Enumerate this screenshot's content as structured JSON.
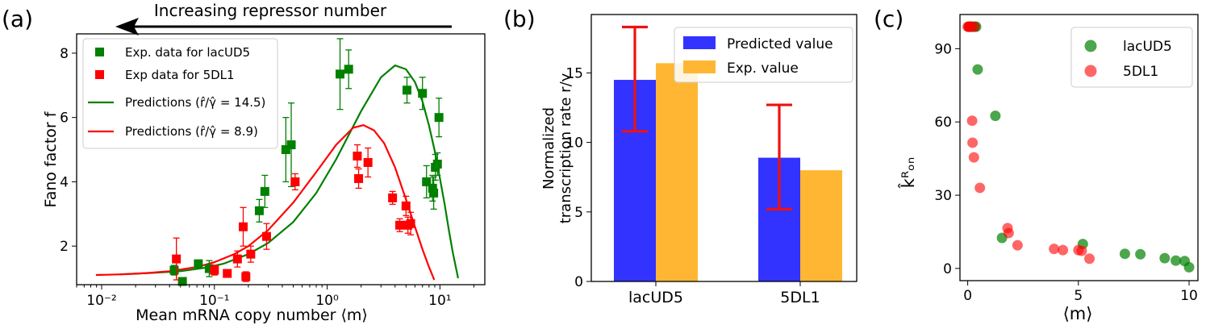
{
  "colors": {
    "lac": "#008000",
    "dl1": "#ff0000",
    "blue": "#3333ff",
    "orange": "#ffb733",
    "err": "#ee1111"
  },
  "chart_data": [
    {
      "type": "scatter",
      "panel_label": "(a)",
      "title": "",
      "annotation": "Increasing repressor number",
      "xlabel": "Mean mRNA copy number ⟨m⟩",
      "ylabel": "Fano factor f",
      "xscale": "log",
      "xlim": [
        0.006,
        25
      ],
      "ylim": [
        0.8,
        8.6
      ],
      "xticks": [
        0.01,
        0.1,
        1,
        10
      ],
      "xtick_labels": [
        "10⁻²",
        "10⁻¹",
        "10⁰",
        "10¹"
      ],
      "yticks": [
        2,
        4,
        6,
        8
      ],
      "ytick_labels": [
        "2",
        "4",
        "6",
        "8"
      ],
      "legend": [
        "Exp. data for lacUD5",
        "Exp data for 5DL1",
        "Predictions (r̂/γ̂ = 14.5)",
        "Predictions (r̂/γ̂ = 8.9)"
      ],
      "series": [
        {
          "name": "Exp. data for lacUD5",
          "kind": "points",
          "x": [
            0.044,
            0.052,
            0.072,
            0.09,
            0.25,
            0.28,
            0.43,
            0.48,
            1.3,
            1.55,
            5.1,
            7.0,
            7.6,
            8.6,
            8.8,
            9.1,
            9.5,
            9.8
          ],
          "y": [
            1.25,
            0.9,
            1.45,
            1.3,
            3.1,
            3.7,
            5.0,
            5.15,
            7.35,
            7.5,
            6.85,
            6.75,
            4.0,
            3.8,
            3.65,
            4.45,
            4.55,
            6.0
          ],
          "yerr": [
            0.15,
            0.1,
            0.1,
            0.25,
            0.35,
            0.5,
            1.0,
            1.3,
            1.1,
            0.6,
            0.4,
            0.5,
            0.5,
            0.4,
            0.5,
            0.4,
            0.35,
            0.6
          ]
        },
        {
          "name": "Exp data for 5DL1",
          "kind": "points",
          "x": [
            0.046,
            0.1,
            0.13,
            0.16,
            0.18,
            0.19,
            0.21,
            0.29,
            0.52,
            1.85,
            1.9,
            2.3,
            3.8,
            4.4,
            5.0,
            5.2,
            5.5
          ],
          "y": [
            1.6,
            1.25,
            1.15,
            1.6,
            2.6,
            1.05,
            1.75,
            2.3,
            4.0,
            4.8,
            4.1,
            4.6,
            3.5,
            2.65,
            3.25,
            2.65,
            2.7
          ],
          "yerr": [
            0.65,
            0.15,
            0.1,
            0.25,
            0.6,
            0.15,
            0.25,
            0.4,
            0.25,
            0.35,
            0.3,
            0.45,
            0.2,
            0.2,
            0.3,
            0.25,
            0.35
          ]
        },
        {
          "name": "Predictions (r̂/γ̂ = 14.5)",
          "kind": "line",
          "x": [
            0.0145,
            0.02,
            0.03,
            0.05,
            0.08,
            0.12,
            0.2,
            0.3,
            0.5,
            0.8,
            1.2,
            2.0,
            3.0,
            4.0,
            5.0,
            6.0,
            7.0,
            8.0,
            9.0,
            10.0,
            11.0,
            12.0,
            13.0,
            14.5
          ],
          "y": [
            1.12,
            1.14,
            1.17,
            1.22,
            1.32,
            1.45,
            1.75,
            2.1,
            2.75,
            3.65,
            4.7,
            6.2,
            7.25,
            7.62,
            7.5,
            7.1,
            6.5,
            5.75,
            4.95,
            4.1,
            3.3,
            2.5,
            1.8,
            1.0
          ]
        },
        {
          "name": "Predictions (r̂/γ̂ = 8.9)",
          "kind": "line",
          "x": [
            0.0089,
            0.015,
            0.025,
            0.04,
            0.07,
            0.1,
            0.15,
            0.2,
            0.3,
            0.5,
            0.8,
            1.2,
            1.7,
            2.1,
            2.6,
            3.2,
            4.0,
            5.0,
            6.0,
            7.0,
            8.0,
            8.9
          ],
          "y": [
            1.1,
            1.12,
            1.16,
            1.22,
            1.35,
            1.5,
            1.75,
            2.0,
            2.5,
            3.35,
            4.3,
            5.15,
            5.68,
            5.76,
            5.6,
            5.2,
            4.45,
            3.45,
            2.6,
            1.9,
            1.35,
            0.95
          ]
        }
      ]
    },
    {
      "type": "bar",
      "panel_label": "(b)",
      "title": "",
      "xlabel": "",
      "ylabel_line1": "Normalized",
      "ylabel_line2": "transcription rate r/γ",
      "ylim": [
        0,
        19.2
      ],
      "yticks": [
        0,
        5,
        10,
        15
      ],
      "ytick_labels": [
        "0",
        "5",
        "10",
        "15"
      ],
      "categories": [
        "lacUD5",
        "5DL1"
      ],
      "legend": [
        "Predicted value",
        "Exp. value"
      ],
      "series": [
        {
          "name": "Predicted value",
          "values": [
            14.5,
            8.9
          ],
          "err_low": [
            10.8,
            5.2
          ],
          "err_high": [
            18.3,
            12.7
          ]
        },
        {
          "name": "Exp. value",
          "values": [
            15.7,
            8.0
          ]
        }
      ]
    },
    {
      "type": "scatter",
      "panel_label": "(c)",
      "title": "",
      "xlabel": "⟨m⟩",
      "ylabel": "k̂ᴿₒₙ",
      "xlim": [
        -0.35,
        10.4
      ],
      "ylim": [
        -5,
        104
      ],
      "xticks": [
        0,
        5,
        10
      ],
      "xtick_labels": [
        "0",
        "5",
        "10"
      ],
      "yticks": [
        0,
        30,
        60,
        90
      ],
      "ytick_labels": [
        "0",
        "30",
        "60",
        "90"
      ],
      "legend": [
        "lacUD5",
        "5DL1"
      ],
      "series": [
        {
          "name": "lacUD5",
          "x": [
            0.05,
            0.1,
            0.15,
            0.2,
            0.3,
            0.38,
            0.45,
            1.25,
            1.55,
            5.2,
            7.1,
            7.8,
            8.9,
            9.4,
            9.8,
            10.0
          ],
          "y": [
            99,
            99,
            99,
            99,
            99,
            99,
            81.5,
            62.5,
            12.5,
            10,
            6,
            5.8,
            4.2,
            3.2,
            3,
            0.5
          ]
        },
        {
          "name": "5DL1",
          "x": [
            0.0,
            0.05,
            0.1,
            0.15,
            0.2,
            0.22,
            0.28,
            0.32,
            0.55,
            1.8,
            1.85,
            2.25,
            3.9,
            4.3,
            5.0,
            5.15,
            5.5
          ],
          "y": [
            99,
            99,
            99,
            99,
            60.5,
            51.5,
            45.5,
            99,
            33,
            16.5,
            14.5,
            9.5,
            8,
            7.5,
            7.5,
            7.2,
            4
          ]
        }
      ]
    }
  ]
}
